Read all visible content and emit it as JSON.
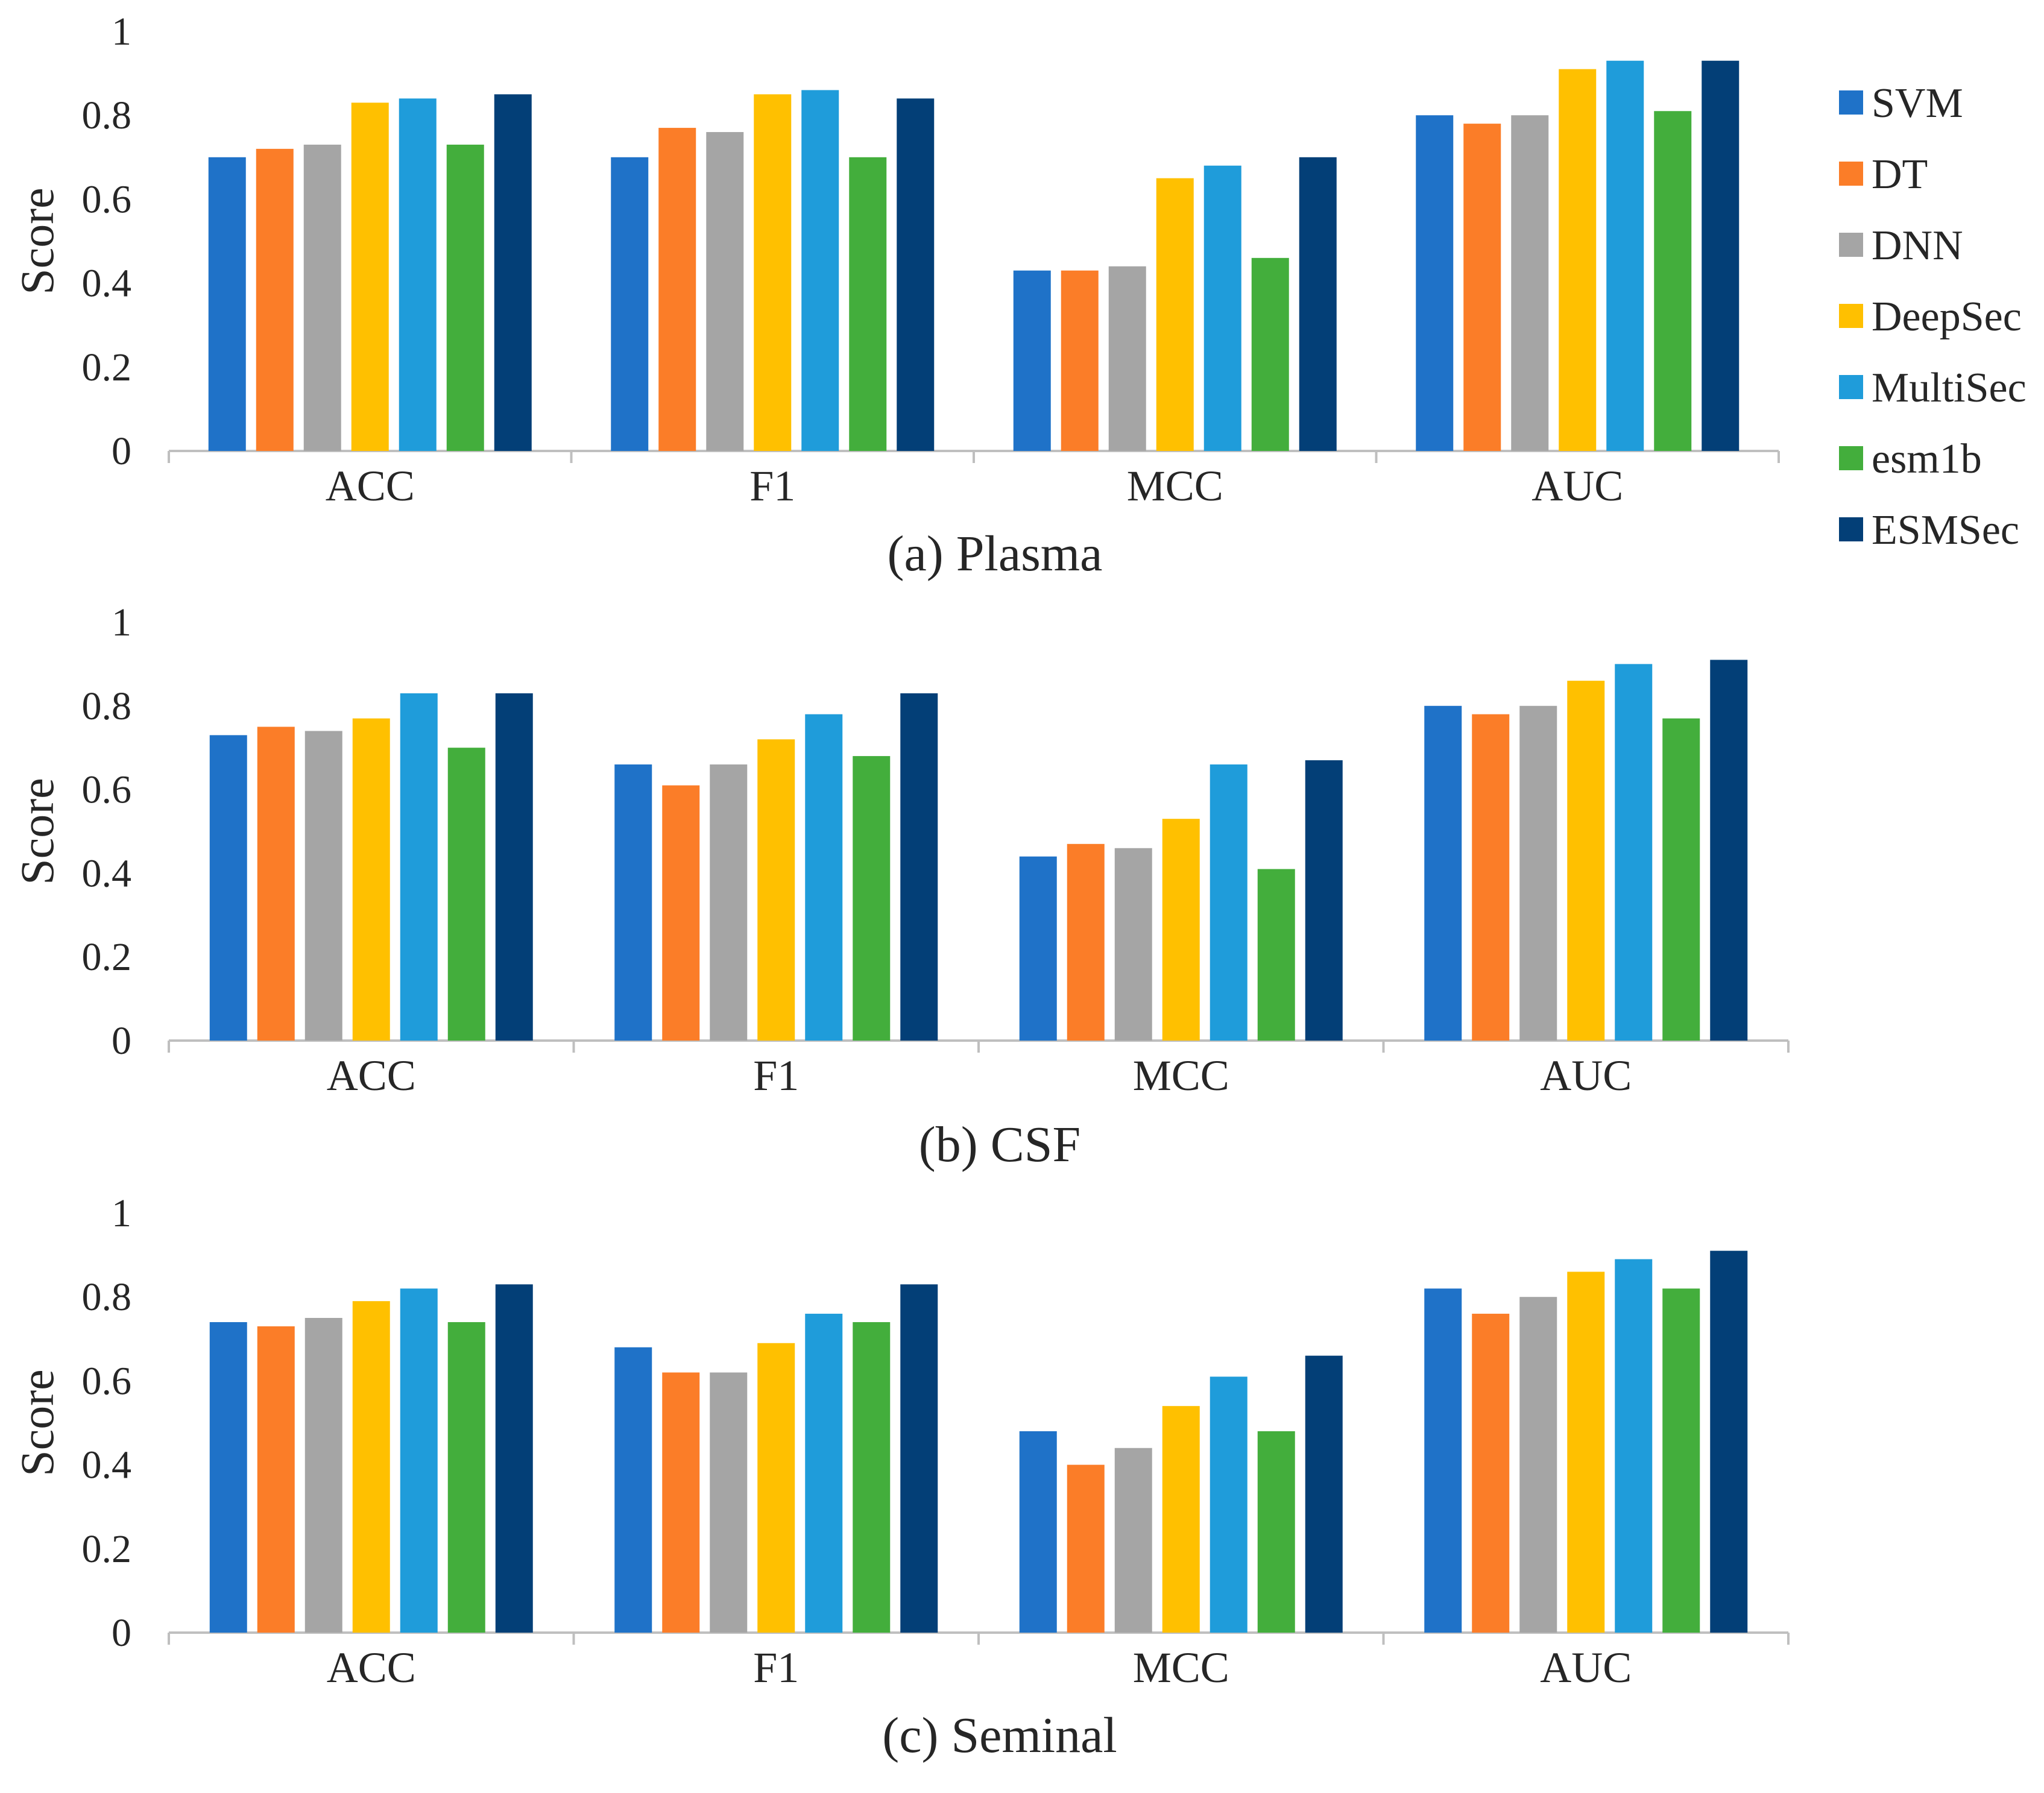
{
  "legend": [
    {
      "name": "SVM",
      "color": "#1F72C8"
    },
    {
      "name": "DT",
      "color": "#FB7D28"
    },
    {
      "name": "DNN",
      "color": "#A5A5A5"
    },
    {
      "name": "DeepSec",
      "color": "#FFC000"
    },
    {
      "name": "MultiSec",
      "color": "#1F9CDA"
    },
    {
      "name": "esm1b",
      "color": "#43AE3C"
    },
    {
      "name": "ESMSec",
      "color": "#033F77"
    }
  ],
  "chart_data": [
    {
      "type": "bar",
      "caption": "(a) Plasma",
      "ylabel": "Score",
      "ylim": [
        0,
        1
      ],
      "yticks": [
        "0",
        "0.2",
        "0.4",
        "0.6",
        "0.8",
        "1"
      ],
      "categories": [
        "ACC",
        "F1",
        "MCC",
        "AUC"
      ],
      "series": [
        {
          "name": "SVM",
          "values": [
            0.7,
            0.7,
            0.43,
            0.8
          ]
        },
        {
          "name": "DT",
          "values": [
            0.72,
            0.77,
            0.43,
            0.78
          ]
        },
        {
          "name": "DNN",
          "values": [
            0.73,
            0.76,
            0.44,
            0.8
          ]
        },
        {
          "name": "DeepSec",
          "values": [
            0.83,
            0.85,
            0.65,
            0.91
          ]
        },
        {
          "name": "MultiSec",
          "values": [
            0.84,
            0.86,
            0.68,
            0.93
          ]
        },
        {
          "name": "esm1b",
          "values": [
            0.73,
            0.7,
            0.46,
            0.81
          ]
        },
        {
          "name": "ESMSec",
          "values": [
            0.85,
            0.84,
            0.7,
            0.93
          ]
        }
      ]
    },
    {
      "type": "bar",
      "caption": "(b) CSF",
      "ylabel": "Score",
      "ylim": [
        0,
        1
      ],
      "yticks": [
        "0",
        "0.2",
        "0.4",
        "0.6",
        "0.8",
        "1"
      ],
      "categories": [
        "ACC",
        "F1",
        "MCC",
        "AUC"
      ],
      "series": [
        {
          "name": "SVM",
          "values": [
            0.73,
            0.66,
            0.44,
            0.8
          ]
        },
        {
          "name": "DT",
          "values": [
            0.75,
            0.61,
            0.47,
            0.78
          ]
        },
        {
          "name": "DNN",
          "values": [
            0.74,
            0.66,
            0.46,
            0.8
          ]
        },
        {
          "name": "DeepSec",
          "values": [
            0.77,
            0.72,
            0.53,
            0.86
          ]
        },
        {
          "name": "MultiSec",
          "values": [
            0.83,
            0.78,
            0.66,
            0.9
          ]
        },
        {
          "name": "esm1b",
          "values": [
            0.7,
            0.68,
            0.41,
            0.77
          ]
        },
        {
          "name": "ESMSec",
          "values": [
            0.83,
            0.83,
            0.67,
            0.91
          ]
        }
      ]
    },
    {
      "type": "bar",
      "caption": "(c) Seminal",
      "ylabel": "Score",
      "ylim": [
        0,
        1
      ],
      "yticks": [
        "0",
        "0.2",
        "0.4",
        "0.6",
        "0.8",
        "1"
      ],
      "categories": [
        "ACC",
        "F1",
        "MCC",
        "AUC"
      ],
      "series": [
        {
          "name": "SVM",
          "values": [
            0.74,
            0.68,
            0.48,
            0.82
          ]
        },
        {
          "name": "DT",
          "values": [
            0.73,
            0.62,
            0.4,
            0.76
          ]
        },
        {
          "name": "DNN",
          "values": [
            0.75,
            0.62,
            0.44,
            0.8
          ]
        },
        {
          "name": "DeepSec",
          "values": [
            0.79,
            0.69,
            0.54,
            0.86
          ]
        },
        {
          "name": "MultiSec",
          "values": [
            0.82,
            0.76,
            0.61,
            0.89
          ]
        },
        {
          "name": "esm1b",
          "values": [
            0.74,
            0.74,
            0.48,
            0.82
          ]
        },
        {
          "name": "ESMSec",
          "values": [
            0.83,
            0.83,
            0.66,
            0.91
          ]
        }
      ]
    }
  ]
}
